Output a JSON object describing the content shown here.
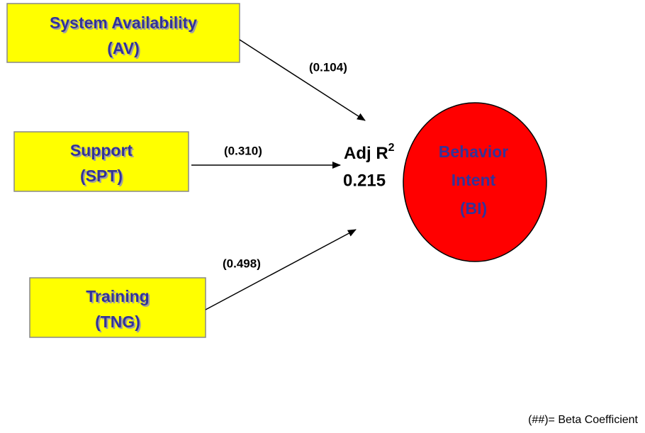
{
  "nodes": [
    {
      "id": "AV",
      "lines": [
        "System Availability",
        "(AV)"
      ]
    },
    {
      "id": "SPT",
      "lines": [
        "Support",
        "(SPT)"
      ]
    },
    {
      "id": "TNG",
      "lines": [
        "Training",
        "(TNG)"
      ]
    },
    {
      "id": "BI",
      "lines": [
        "Behavior",
        "Intent",
        "(BI)"
      ]
    }
  ],
  "edges": [
    {
      "from": "AV",
      "to": "BI",
      "label": "(0.104)"
    },
    {
      "from": "SPT",
      "to": "BI",
      "label": "(0.310)"
    },
    {
      "from": "TNG",
      "to": "BI",
      "label": "(0.498)"
    }
  ],
  "r_squared": {
    "label": "Adj R",
    "superscript": "2",
    "value": "0.215"
  },
  "footnote": "(##)= Beta Coefficient"
}
